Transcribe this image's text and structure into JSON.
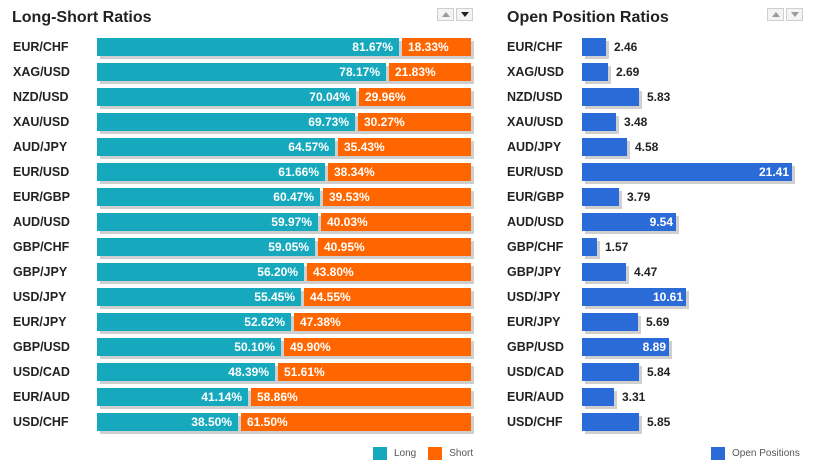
{
  "colors": {
    "long": "#16a9bd",
    "short": "#ff6600",
    "open_positions": "#2a6bd8",
    "shadow": "#cfcfcf"
  },
  "long_short": {
    "title": "Long-Short Ratios",
    "legend": {
      "long": "Long",
      "short": "Short"
    }
  },
  "open_positions": {
    "title": "Open Position Ratios",
    "legend": {
      "open": "Open Positions"
    }
  },
  "chart_data": [
    {
      "type": "bar",
      "title": "Long-Short Ratios",
      "orientation": "horizontal",
      "stacked": true,
      "categories": [
        "EUR/CHF",
        "XAG/USD",
        "NZD/USD",
        "XAU/USD",
        "AUD/JPY",
        "EUR/USD",
        "EUR/GBP",
        "AUD/USD",
        "GBP/CHF",
        "GBP/JPY",
        "USD/JPY",
        "EUR/JPY",
        "GBP/USD",
        "USD/CAD",
        "EUR/AUD",
        "USD/CHF"
      ],
      "series": [
        {
          "name": "Long",
          "values": [
            81.67,
            78.17,
            70.04,
            69.73,
            64.57,
            61.66,
            60.47,
            59.97,
            59.05,
            56.2,
            55.45,
            52.62,
            50.1,
            48.39,
            41.14,
            38.5
          ],
          "labels": [
            "81.67%",
            "78.17%",
            "70.04%",
            "69.73%",
            "64.57%",
            "61.66%",
            "60.47%",
            "59.97%",
            "59.05%",
            "56.20%",
            "55.45%",
            "52.62%",
            "50.10%",
            "48.39%",
            "41.14%",
            "38.50%"
          ]
        },
        {
          "name": "Short",
          "values": [
            18.33,
            21.83,
            29.96,
            30.27,
            35.43,
            38.34,
            39.53,
            40.03,
            40.95,
            43.8,
            44.55,
            47.38,
            49.9,
            51.61,
            58.86,
            61.5
          ],
          "labels": [
            "18.33%",
            "21.83%",
            "29.96%",
            "30.27%",
            "35.43%",
            "38.34%",
            "39.53%",
            "40.03%",
            "40.95%",
            "43.80%",
            "44.55%",
            "47.38%",
            "49.90%",
            "51.61%",
            "58.86%",
            "61.50%"
          ]
        }
      ],
      "xlim": [
        0,
        100
      ],
      "legend_position": "bottom-right",
      "grid": false
    },
    {
      "type": "bar",
      "title": "Open Position Ratios",
      "orientation": "horizontal",
      "categories": [
        "EUR/CHF",
        "XAG/USD",
        "NZD/USD",
        "XAU/USD",
        "AUD/JPY",
        "EUR/USD",
        "EUR/GBP",
        "AUD/USD",
        "GBP/CHF",
        "GBP/JPY",
        "USD/JPY",
        "EUR/JPY",
        "GBP/USD",
        "USD/CAD",
        "EUR/AUD",
        "USD/CHF"
      ],
      "series": [
        {
          "name": "Open Positions",
          "values": [
            2.46,
            2.69,
            5.83,
            3.48,
            4.58,
            21.41,
            3.79,
            9.54,
            1.57,
            4.47,
            10.61,
            5.69,
            8.89,
            5.84,
            3.31,
            5.85
          ],
          "labels": [
            "2.46",
            "2.69",
            "5.83",
            "3.48",
            "4.58",
            "21.41",
            "3.79",
            "9.54",
            "1.57",
            "4.47",
            "10.61",
            "5.69",
            "8.89",
            "5.84",
            "3.31",
            "5.85"
          ]
        }
      ],
      "xlim": [
        0,
        21.41
      ],
      "legend_position": "bottom-right",
      "grid": false
    }
  ]
}
